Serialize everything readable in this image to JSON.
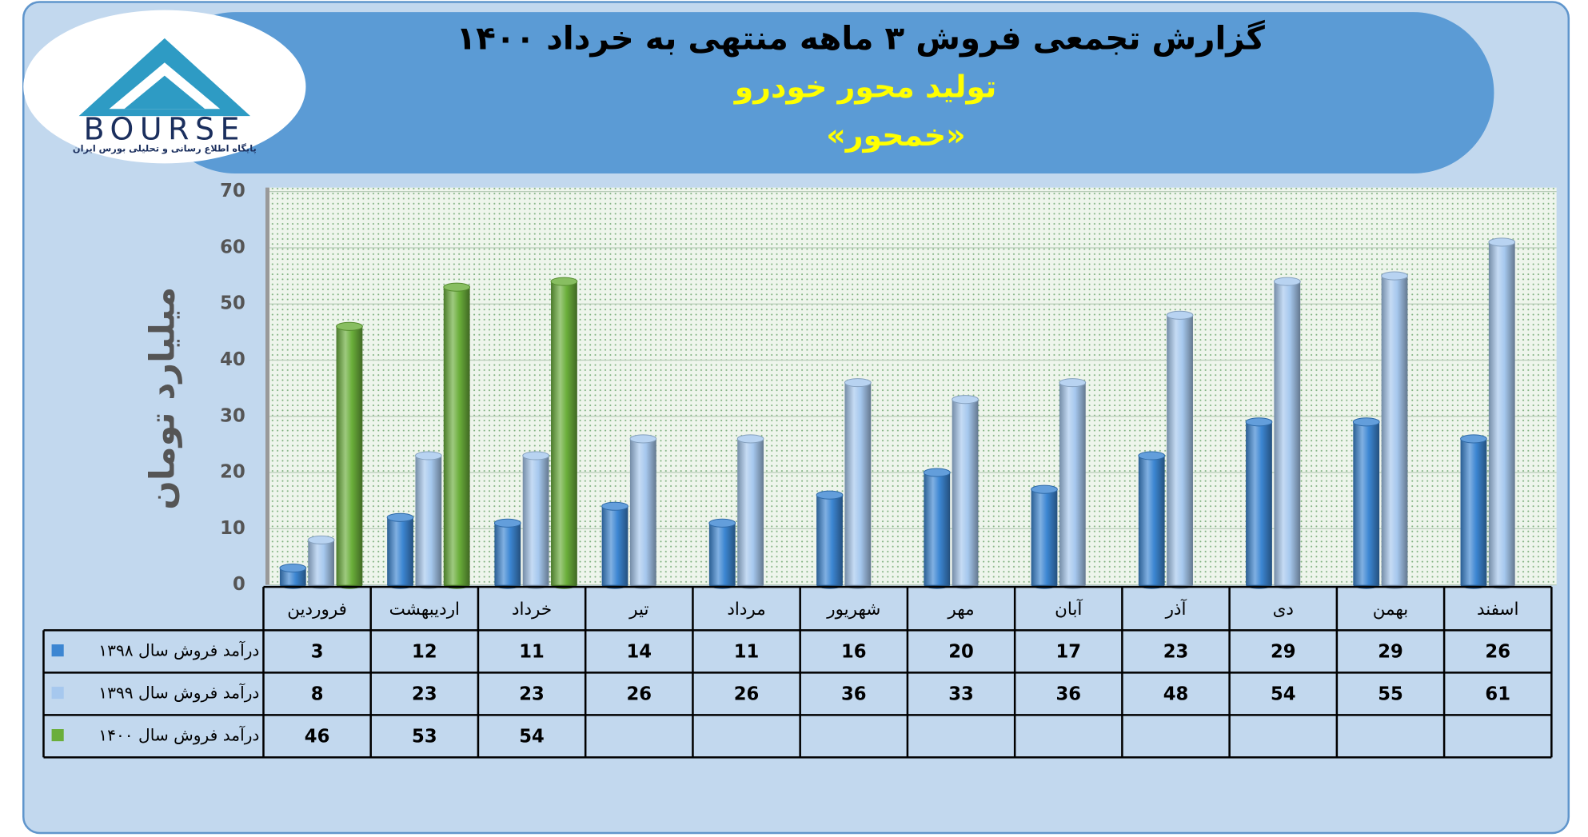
{
  "logo": {
    "name": "BOURSE",
    "tagline": "پایگاه اطلاع رسانی و تحلیلی بورس ایران"
  },
  "chart_data": {
    "type": "bar",
    "title": "گزارش تجمعی فروش ۳ ماهه منتهی به خرداد ۱۴۰۰",
    "subtitle": "تولید محور خودرو",
    "subtitle2": "«خمحور»",
    "y_label": "میلیارد تومان",
    "categories": [
      "فروردین",
      "اردیبهشت",
      "خرداد",
      "تیر",
      "مرداد",
      "شهریور",
      "مهر",
      "آبان",
      "آذر",
      "دی",
      "بهمن",
      "اسفند"
    ],
    "series": [
      {
        "name": "درآمد فروش سال ۱۳۹۸",
        "color": "#3c86d2",
        "values": [
          3,
          12,
          11,
          14,
          11,
          16,
          20,
          17,
          23,
          29,
          29,
          26
        ]
      },
      {
        "name": "درآمد فروش سال ۱۳۹۹",
        "color": "#a6c8ee",
        "values": [
          8,
          23,
          23,
          26,
          26,
          36,
          33,
          36,
          48,
          54,
          55,
          61
        ]
      },
      {
        "name": "درآمد فروش سال ۱۴۰۰",
        "color": "#6aae3a",
        "values": [
          46,
          53,
          54,
          null,
          null,
          null,
          null,
          null,
          null,
          null,
          null,
          null
        ]
      }
    ],
    "ylim": [
      0,
      70
    ],
    "yticks": [
      0,
      10,
      20,
      30,
      40,
      50,
      60,
      70
    ],
    "grid": true
  }
}
